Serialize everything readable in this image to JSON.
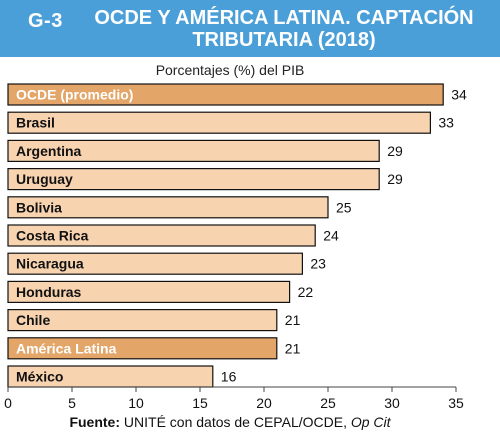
{
  "header": {
    "figure_code": "G-3",
    "title_line1": "OCDE Y AMÉRICA LATINA. CAPTACIÓN",
    "title_line2": "TRIBUTARIA (2018)"
  },
  "source": {
    "label": "Fuente:",
    "text": "UNITÉ con datos de CEPAL/OCDE,",
    "italic": "Op Cit"
  },
  "colors": {
    "header_bg": "#4a9fd8",
    "bar_default": "#f7d3b0",
    "bar_highlight": "#e3a668",
    "bar_border": "#111111"
  },
  "chart_data": {
    "type": "bar",
    "orientation": "horizontal",
    "subtitle": "Porcentajes (%) del PIB",
    "categories": [
      "OCDE (promedio)",
      "Brasil",
      "Argentina",
      "Uruguay",
      "Bolivia",
      "Costa Rica",
      "Nicaragua",
      "Honduras",
      "Chile",
      "América Latina",
      "México"
    ],
    "values": [
      34,
      33,
      29,
      29,
      25,
      24,
      23,
      22,
      21,
      21,
      16
    ],
    "highlighted": [
      "OCDE (promedio)",
      "América Latina"
    ],
    "xlim": [
      0,
      35
    ],
    "xticks": [
      0,
      5,
      10,
      15,
      20,
      25,
      30,
      35
    ],
    "grid": false
  }
}
